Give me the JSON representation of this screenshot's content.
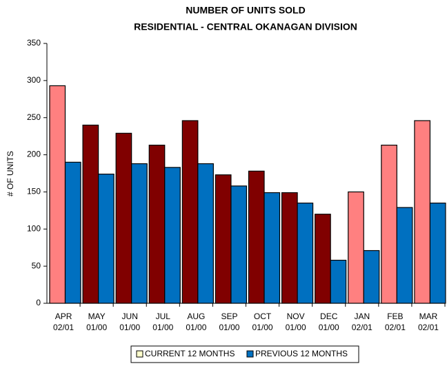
{
  "chart_data": {
    "type": "grouped-bar",
    "title": "NUMBER OF UNITS SOLD",
    "subtitle": "RESIDENTIAL - CENTRAL OKANAGAN DIVISION",
    "y_label": "# OF UNITS",
    "categories": [
      [
        "APR",
        "02/01"
      ],
      [
        "MAY",
        "01/00"
      ],
      [
        "JUN",
        "01/00"
      ],
      [
        "JUL",
        "01/00"
      ],
      [
        "AUG",
        "01/00"
      ],
      [
        "SEP",
        "01/00"
      ],
      [
        "OCT",
        "01/00"
      ],
      [
        "NOV",
        "01/00"
      ],
      [
        "DEC",
        "01/00"
      ],
      [
        "JAN",
        "02/01"
      ],
      [
        "FEB",
        "02/01"
      ],
      [
        "MAR",
        "02/01"
      ]
    ],
    "series": [
      {
        "name": "CURRENT 12 MONTHS",
        "color": "#ffffcc",
        "colors": [
          "#ff8080",
          "#800000",
          "#800000",
          "#800000",
          "#800000",
          "#800000",
          "#800000",
          "#800000",
          "#800000",
          "#ff8080",
          "#ff8080",
          "#ff8080"
        ],
        "values": [
          293,
          240,
          229,
          213,
          246,
          173,
          178,
          149,
          120,
          150,
          213,
          246
        ]
      },
      {
        "name": "PREVIOUS 12 MONTHS",
        "color": "#0070c0",
        "values": [
          190,
          174,
          188,
          183,
          188,
          158,
          149,
          135,
          58,
          71,
          129,
          135
        ]
      }
    ],
    "ylim": [
      0,
      350
    ],
    "yticks": [
      0,
      50,
      100,
      150,
      200,
      250,
      300,
      350
    ],
    "legend": "bottom"
  }
}
